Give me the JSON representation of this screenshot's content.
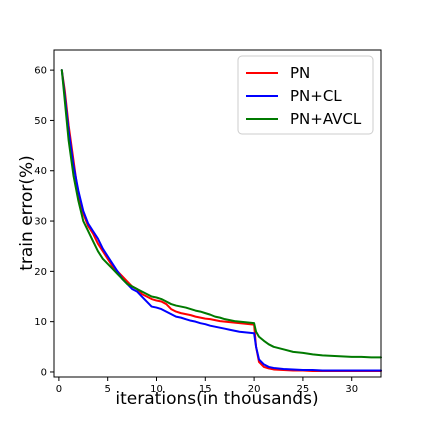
{
  "chart_data": {
    "type": "line",
    "title": "",
    "xlabel": "iterations(in thousands)",
    "ylabel": "train error(%)",
    "xlim": [
      -0.5,
      33
    ],
    "ylim": [
      -1,
      64
    ],
    "xticks": [
      0,
      5,
      10,
      15,
      20,
      25,
      30
    ],
    "yticks": [
      0,
      10,
      20,
      30,
      40,
      50,
      60
    ],
    "grid": false,
    "legend_position": "top-right",
    "series": [
      {
        "name": "PN",
        "color": "#ff0000",
        "x": [
          0.3,
          0.6,
          1,
          1.5,
          2,
          2.5,
          3,
          3.5,
          4,
          4.5,
          5,
          5.5,
          6,
          6.5,
          7,
          7.5,
          8,
          8.5,
          9,
          9.5,
          10,
          10.5,
          11,
          11.5,
          12,
          12.5,
          13,
          13.5,
          14,
          14.5,
          15,
          15.5,
          16,
          16.5,
          17,
          17.5,
          18,
          18.5,
          19,
          19.5,
          20,
          20.2,
          20.5,
          21,
          21.5,
          22,
          23,
          24,
          25,
          26,
          27,
          28,
          29,
          30,
          31,
          32,
          33
        ],
        "y": [
          60,
          56,
          49,
          42,
          35,
          31.5,
          29,
          27.5,
          25.5,
          24,
          22.5,
          21,
          20,
          19,
          18,
          17,
          16.5,
          15.5,
          15,
          14.5,
          14.2,
          14,
          13.5,
          12.5,
          12,
          11.7,
          11.5,
          11.3,
          11,
          10.8,
          10.6,
          10.5,
          10.3,
          10.1,
          10,
          9.9,
          9.8,
          9.7,
          9.6,
          9.5,
          9.4,
          5,
          2,
          1,
          0.7,
          0.5,
          0.4,
          0.3,
          0.3,
          0.2,
          0.2,
          0.2,
          0.2,
          0.2,
          0.2,
          0.2,
          0.2
        ]
      },
      {
        "name": "PN+CL",
        "color": "#0000ff",
        "x": [
          0.3,
          0.6,
          1,
          1.5,
          2,
          2.5,
          3,
          3.5,
          4,
          4.5,
          5,
          5.5,
          6,
          6.5,
          7,
          7.5,
          8,
          8.5,
          9,
          9.5,
          10,
          10.5,
          11,
          11.5,
          12,
          12.5,
          13,
          13.5,
          14,
          14.5,
          15,
          15.5,
          16,
          16.5,
          17,
          17.5,
          18,
          18.5,
          19,
          19.5,
          20,
          20.2,
          20.5,
          21,
          21.5,
          22,
          23,
          24,
          25,
          26,
          27,
          28,
          29,
          30,
          31,
          32,
          33
        ],
        "y": [
          60,
          55,
          48,
          41,
          36,
          32,
          29.5,
          28,
          26.5,
          24.5,
          23,
          21.5,
          20,
          18.5,
          17.5,
          16.5,
          16,
          15,
          14,
          13,
          12.8,
          12.5,
          12,
          11.5,
          11,
          10.8,
          10.5,
          10.2,
          10,
          9.7,
          9.5,
          9.2,
          9,
          8.8,
          8.6,
          8.4,
          8.2,
          8,
          7.9,
          7.8,
          7.7,
          5,
          2.5,
          1.5,
          1,
          0.8,
          0.6,
          0.5,
          0.4,
          0.4,
          0.3,
          0.3,
          0.3,
          0.3,
          0.3,
          0.3,
          0.3
        ]
      },
      {
        "name": "PN+AVCL",
        "color": "#007a00",
        "x": [
          0.3,
          0.6,
          1,
          1.5,
          2,
          2.5,
          3,
          3.5,
          4,
          4.5,
          5,
          5.5,
          6,
          6.5,
          7,
          7.5,
          8,
          8.5,
          9,
          9.5,
          10,
          10.5,
          11,
          11.5,
          12,
          12.5,
          13,
          13.5,
          14,
          14.5,
          15,
          15.5,
          16,
          16.5,
          17,
          17.5,
          18,
          18.5,
          19,
          19.5,
          20,
          20.2,
          20.5,
          21,
          21.5,
          22,
          23,
          24,
          25,
          26,
          27,
          28,
          29,
          30,
          31,
          32,
          33
        ],
        "y": [
          60,
          54,
          46,
          39,
          34,
          30,
          28,
          26,
          24,
          22.5,
          21.5,
          20.5,
          19.5,
          18.5,
          17.5,
          17,
          16.5,
          16,
          15.5,
          15,
          14.8,
          14.5,
          14,
          13.5,
          13.2,
          13,
          12.8,
          12.5,
          12.2,
          12,
          11.7,
          11.4,
          11,
          10.8,
          10.5,
          10.3,
          10.1,
          10,
          9.9,
          9.8,
          9.7,
          8,
          7,
          6.2,
          5.5,
          5,
          4.5,
          4,
          3.8,
          3.5,
          3.3,
          3.2,
          3.1,
          3,
          3,
          2.9,
          2.9
        ]
      }
    ]
  }
}
